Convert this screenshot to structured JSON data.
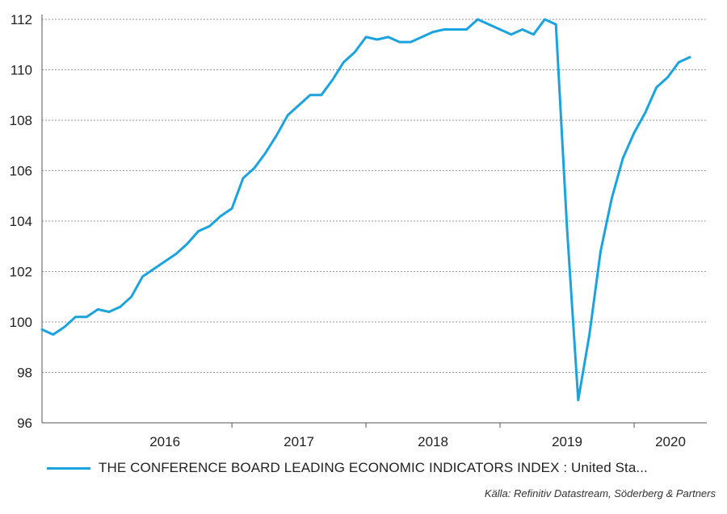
{
  "chart_data": {
    "type": "line",
    "title": "",
    "xlabel": "",
    "ylabel": "",
    "ylim": [
      96,
      112
    ],
    "yticks": [
      96,
      98,
      100,
      102,
      104,
      106,
      108,
      110,
      112
    ],
    "ytick_labels": [
      "96",
      "98",
      "100",
      "102",
      "104",
      "106",
      "108",
      "110",
      "112"
    ],
    "xtick_labels": [
      "2016",
      "2017",
      "2018",
      "2019",
      "2020"
    ],
    "grid": "horizontal dashed",
    "legend_position": "bottom",
    "series": [
      {
        "name": "THE CONFERENCE BOARD LEADING ECONOMIC INDICATORS INDEX : United Sta...",
        "color": "#1aa3de",
        "start": "2015-08",
        "frequency": "monthly",
        "values": [
          99.7,
          99.5,
          99.8,
          100.2,
          100.2,
          100.5,
          100.4,
          100.6,
          101.0,
          101.8,
          102.1,
          102.4,
          102.7,
          103.1,
          103.6,
          103.8,
          104.2,
          104.5,
          105.7,
          106.1,
          106.7,
          107.4,
          108.2,
          108.6,
          109.0,
          109.0,
          109.6,
          110.3,
          110.7,
          111.3,
          111.2,
          111.3,
          111.1,
          111.1,
          111.3,
          111.5,
          111.6,
          111.6,
          111.6,
          112.0,
          111.8,
          111.6,
          111.4,
          111.6,
          111.4,
          112.0,
          111.8,
          103.7,
          96.9,
          99.5,
          102.8,
          104.9,
          106.5,
          107.5,
          108.3,
          109.3,
          109.7,
          110.3,
          110.5
        ]
      }
    ]
  },
  "legend": {
    "label": "THE CONFERENCE BOARD LEADING ECONOMIC INDICATORS INDEX : United Sta..."
  },
  "source": "Källa: Refinitiv Datastream, Söderberg & Partners"
}
